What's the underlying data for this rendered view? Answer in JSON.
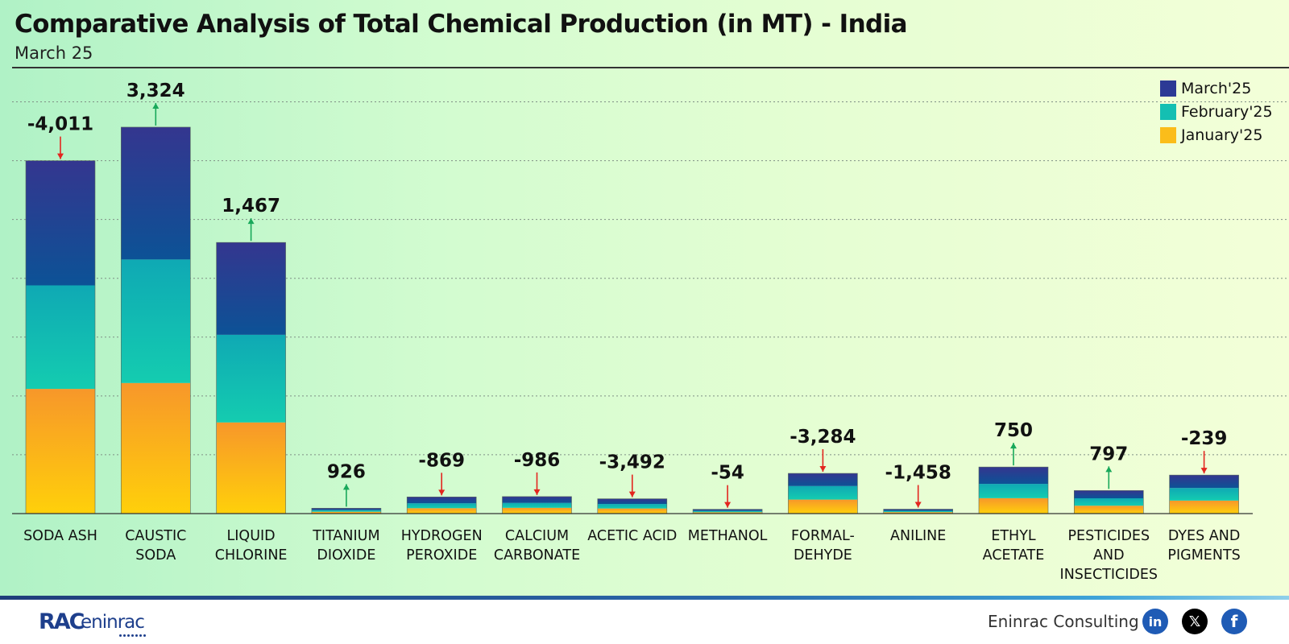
{
  "title": "Comparative Analysis of Total Chemical Production (in MT) - India",
  "subtitle": "March 25",
  "legend": [
    {
      "label": "March'25",
      "color": "#2c3a95"
    },
    {
      "label": "February'25",
      "color": "#14bfb2"
    },
    {
      "label": "January'25",
      "color": "#fbbd1a"
    }
  ],
  "colors": {
    "march_top": "#34368f",
    "march_bottom": "#0c5296",
    "february_top": "#0fa9b4",
    "february_bottom": "#14ccb0",
    "january_top": "#f7972a",
    "january_bottom": "#ffd00a",
    "up_arrow": "#18a85a",
    "down_arrow": "#e3261f"
  },
  "chart_data": {
    "type": "bar",
    "stacked": true,
    "categories": [
      [
        "SODA ASH"
      ],
      [
        "CAUSTIC",
        "SODA"
      ],
      [
        "LIQUID",
        "CHLORINE"
      ],
      [
        "TITANIUM",
        "DIOXIDE"
      ],
      [
        "HYDROGEN",
        "PEROXIDE"
      ],
      [
        "CALCIUM",
        "CARBONATE"
      ],
      [
        "ACETIC ACID"
      ],
      [
        "METHANOL"
      ],
      [
        "FORMAL-",
        "DEHYDE"
      ],
      [
        "ANILINE"
      ],
      [
        "ETHYL",
        "ACETATE"
      ],
      [
        "PESTICIDES",
        "AND",
        "INSECTICIDES"
      ],
      [
        "DYES AND",
        "PIGMENTS"
      ]
    ],
    "series": [
      {
        "name": "January'25",
        "values": [
          212000,
          222000,
          155000,
          3100,
          9200,
          9800,
          8700,
          2300,
          23800,
          2500,
          26200,
          13400,
          22100
        ]
      },
      {
        "name": "February'25",
        "values": [
          176000,
          210000,
          149000,
          2900,
          8300,
          8300,
          7600,
          2300,
          23000,
          2300,
          24300,
          12600,
          21400
        ]
      },
      {
        "name": "March'25",
        "values": [
          212000,
          225000,
          157000,
          3100,
          10800,
          10800,
          8900,
          2700,
          21600,
          2700,
          28700,
          13200,
          22000
        ]
      }
    ],
    "change_labels": [
      "-4,011",
      "3,324",
      "1,467",
      "926",
      "-869",
      "-986",
      "-3,492",
      "-54",
      "-3,284",
      "-1,458",
      "750",
      "797",
      "-239"
    ],
    "change_direction": [
      "down",
      "up",
      "up",
      "up",
      "down",
      "down",
      "down",
      "down",
      "down",
      "down",
      "up",
      "up",
      "down"
    ],
    "ylim": [
      0,
      750000
    ],
    "y_grid_step": 100000,
    "y_tick_labels": false,
    "grid": "horizontal-dotted",
    "legend_position": "top-right",
    "xlabel": "",
    "ylabel": ""
  },
  "footer": {
    "logo_mark": "RAC",
    "logo_word": "eninrac",
    "company": "Eninrac Consulting",
    "icons": [
      "linkedin-icon",
      "x-twitter-icon",
      "facebook-icon"
    ]
  }
}
